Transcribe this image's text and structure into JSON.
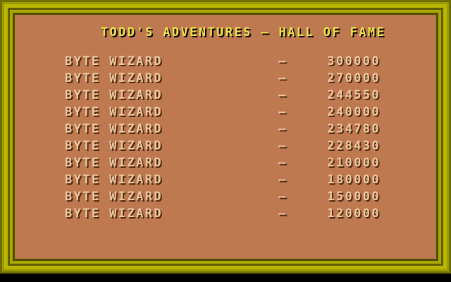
{
  "title": "TODD'S ADVENTURES — HALL OF FAME",
  "hall_of_fame": {
    "rows": [
      {
        "name": "BYTE WIZARD",
        "separator": "—",
        "score": "300000"
      },
      {
        "name": "BYTE WIZARD",
        "separator": "—",
        "score": "270000"
      },
      {
        "name": "BYTE WIZARD",
        "separator": "—",
        "score": "244550"
      },
      {
        "name": "BYTE WIZARD",
        "separator": "—",
        "score": "240000"
      },
      {
        "name": "BYTE WIZARD",
        "separator": "—",
        "score": "234780"
      },
      {
        "name": "BYTE WIZARD",
        "separator": "—",
        "score": "228430"
      },
      {
        "name": "BYTE WIZARD",
        "separator": "—",
        "score": "210000"
      },
      {
        "name": "BYTE WIZARD",
        "separator": "—",
        "score": "180000"
      },
      {
        "name": "BYTE WIZARD",
        "separator": "—",
        "score": "150000"
      },
      {
        "name": "BYTE WIZARD",
        "separator": "—",
        "score": "120000"
      }
    ]
  },
  "colors": {
    "background": "#000000",
    "panel": "#be7950",
    "title_text": "#f0e24a",
    "title_shadow": "#000000",
    "entry_text": "#efc9a2",
    "entry_shadow": "#4e2b10",
    "frame_outer_dark": "#6f6d00",
    "frame_medium": "#9c9a00",
    "frame_bright": "#b9b700",
    "frame_dark": "#605e00",
    "frame_bright2": "#aba900",
    "frame_inner_dark": "#4f4d00"
  }
}
